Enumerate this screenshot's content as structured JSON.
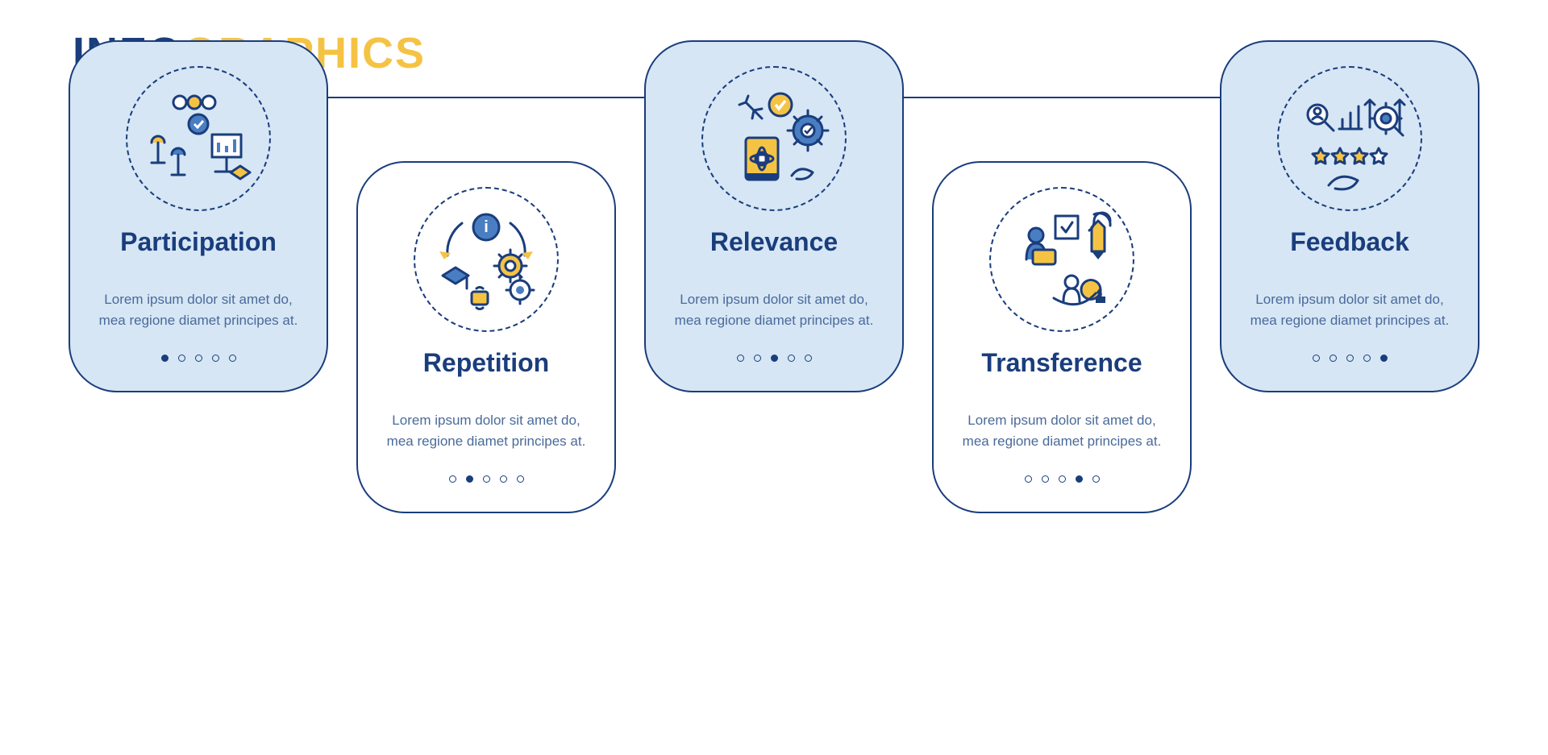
{
  "colors": {
    "navy": "#1a3d7c",
    "yellow": "#f5c344",
    "lightBlue": "#d6e6f5",
    "midBlue": "#4a7ec2",
    "bodyText": "#4a6a9a",
    "white": "#ffffff",
    "underline": "#b8d4ec"
  },
  "header": {
    "part1": "INFO",
    "part2": "GRAPHICS"
  },
  "layout": {
    "cardBorderRadius": 60,
    "cardWidth": 322,
    "iconSize": 180,
    "offsetTop": 150
  },
  "lorem": "Lorem ipsum dolor sit amet do, mea regione diamet principes at.",
  "cards": [
    {
      "title": "Participation",
      "filled": true,
      "offset": false,
      "activeDot": 0,
      "icon": "participation"
    },
    {
      "title": "Repetition",
      "filled": false,
      "offset": true,
      "activeDot": 1,
      "icon": "repetition"
    },
    {
      "title": "Relevance",
      "filled": true,
      "offset": false,
      "activeDot": 2,
      "icon": "relevance"
    },
    {
      "title": "Transference",
      "filled": false,
      "offset": true,
      "activeDot": 3,
      "icon": "transference"
    },
    {
      "title": "Feedback",
      "filled": true,
      "offset": false,
      "activeDot": 4,
      "icon": "feedback"
    }
  ],
  "dotsPerCard": 5
}
